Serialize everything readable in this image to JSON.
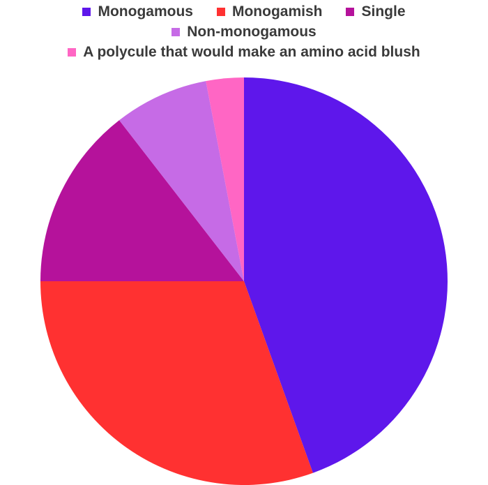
{
  "chart_data": {
    "type": "pie",
    "legend_position": "top",
    "slices": [
      {
        "label": "Monogamous",
        "value": 44.5,
        "color": "#5E17EB"
      },
      {
        "label": "Monogamish",
        "value": 30.5,
        "color": "#FF3131"
      },
      {
        "label": "Single",
        "value": 14.5,
        "color": "#B5129B"
      },
      {
        "label": "Non-monogamous",
        "value": 7.5,
        "color": "#C66BE6"
      },
      {
        "label": "A polycule that would make an amino acid blush",
        "value": 3.0,
        "color": "#FF66C4"
      }
    ]
  }
}
